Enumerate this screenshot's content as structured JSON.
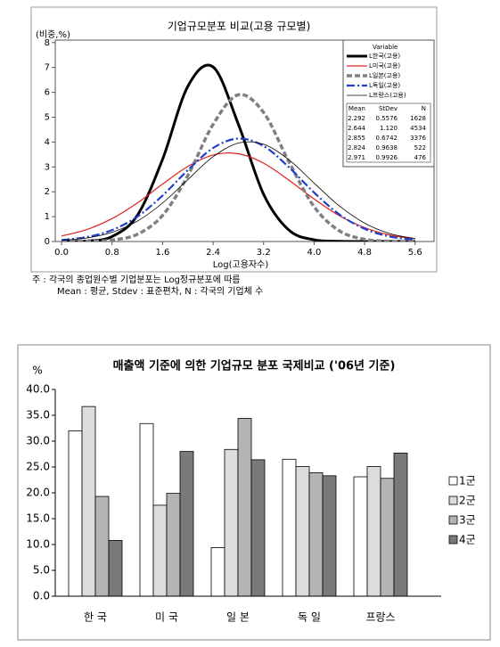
{
  "chart_data": [
    {
      "type": "line",
      "title": "기업규모분포 비교(고용 규모별)",
      "y_label": "(비중,%)",
      "x_label": "Log(고용자수)",
      "xlim": [
        -0.1,
        5.9
      ],
      "ylim": [
        0,
        8.1
      ],
      "xticks": [
        {
          "value": 0,
          "label": "0.0"
        },
        {
          "value": 0.8,
          "label": "0.8"
        },
        {
          "value": 1.6,
          "label": "1.6"
        },
        {
          "value": 2.4,
          "label": "2.4"
        },
        {
          "value": 3.2,
          "label": "3.2"
        },
        {
          "value": 4,
          "label": "4.0"
        },
        {
          "value": 4.8,
          "label": "4.8"
        },
        {
          "value": 5.6,
          "label": "5.6"
        }
      ],
      "yticks": [
        0,
        1,
        2,
        3,
        4,
        5,
        6,
        7,
        8
      ],
      "x": [
        0,
        0.4,
        0.8,
        1.2,
        1.6,
        2.0,
        2.4,
        2.8,
        3.2,
        3.6,
        4.0,
        4.4,
        4.8,
        5.2,
        5.6
      ],
      "legend_title": "Variable",
      "series": [
        {
          "name": "L한국(고용)",
          "color": "#000000",
          "width": 3,
          "style": "solid",
          "values": [
            0.0,
            0.02,
            0.2,
            1.05,
            3.31,
            6.24,
            7.02,
            4.72,
            1.9,
            0.46,
            0.07,
            0.01,
            0,
            0,
            0
          ]
        },
        {
          "name": "L미국(고용)",
          "color": "#e02020",
          "width": 1.2,
          "style": "solid",
          "values": [
            0.22,
            0.48,
            0.92,
            1.55,
            2.31,
            3.02,
            3.48,
            3.53,
            3.15,
            2.47,
            1.71,
            1.04,
            0.56,
            0.26,
            0.11
          ]
        },
        {
          "name": "L일본(고용)",
          "color": "#808080",
          "width": 3.5,
          "style": "dashed",
          "values": [
            0.0,
            0.01,
            0.06,
            0.29,
            1.05,
            2.65,
            4.71,
            5.9,
            5.19,
            3.21,
            1.4,
            0.43,
            0.09,
            0.01,
            0
          ]
        },
        {
          "name": "L독일(고용)",
          "color": "#1f3fc8",
          "width": 2.2,
          "style": "dashdot",
          "values": [
            0.06,
            0.18,
            0.46,
            1.0,
            1.85,
            2.87,
            3.76,
            4.14,
            3.84,
            2.99,
            1.97,
            1.09,
            0.51,
            0.2,
            0.07
          ]
        },
        {
          "name": "L프랑스(고용)",
          "color": "#000000",
          "width": 0.8,
          "style": "solid",
          "values": [
            0.05,
            0.14,
            0.37,
            0.82,
            1.55,
            2.49,
            3.41,
            3.96,
            3.91,
            3.29,
            2.35,
            1.43,
            0.74,
            0.32,
            0.12
          ]
        }
      ],
      "stats": {
        "columns": [
          "Mean",
          "StDev",
          "N"
        ],
        "rows": [
          [
            2.292,
            0.5576,
            1628
          ],
          [
            2.644,
            {
              "value": 1.12,
              "label": "1.120"
            },
            4534
          ],
          [
            2.855,
            0.6742,
            3376
          ],
          [
            2.824,
            0.9638,
            522
          ],
          [
            2.971,
            0.9926,
            476
          ]
        ]
      },
      "notes": [
        "주 : 각국의 종업원수별 기업분포는 Log정규분포에 따름",
        "Mean : 평균, Stdev : 표준편차, N : 각국의 기업체 수"
      ]
    },
    {
      "type": "bar",
      "title": "매출액 기준에 의한 기업규모 분포 국제비교 ('06년 기준)",
      "y_label": "%",
      "ylim": [
        0,
        40
      ],
      "yticks": [
        {
          "value": 0,
          "label": "0.0"
        },
        {
          "value": 5,
          "label": "5.0"
        },
        {
          "value": 10,
          "label": "10.0"
        },
        {
          "value": 15,
          "label": "15.0"
        },
        {
          "value": 20,
          "label": "20.0"
        },
        {
          "value": 25,
          "label": "25.0"
        },
        {
          "value": 30,
          "label": "30.0"
        },
        {
          "value": 35,
          "label": "35.0"
        },
        {
          "value": 40,
          "label": "40.0"
        }
      ],
      "categories": [
        "한 국",
        "미 국",
        "일 본",
        "독 일",
        "프랑스"
      ],
      "series": [
        {
          "name": "1군",
          "color": "#ffffff",
          "values": [
            32.0,
            33.4,
            9.4,
            26.5,
            23.1
          ]
        },
        {
          "name": "2군",
          "color": "#dcdcdc",
          "values": [
            36.7,
            17.6,
            28.4,
            25.1,
            25.1
          ]
        },
        {
          "name": "3군",
          "color": "#b4b4b4",
          "values": [
            19.3,
            19.9,
            34.4,
            23.9,
            22.8
          ]
        },
        {
          "name": "4군",
          "color": "#7a7a7a",
          "values": [
            10.8,
            28.0,
            26.4,
            23.3,
            27.7
          ]
        }
      ]
    }
  ]
}
